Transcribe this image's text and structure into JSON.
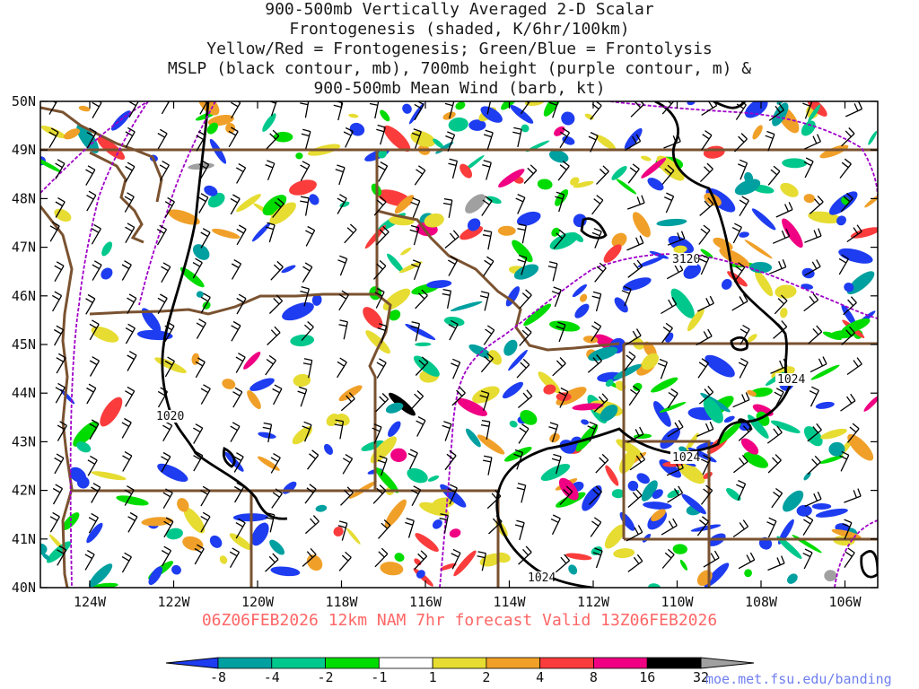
{
  "title_lines": [
    "900-500mb Vertically Averaged 2-D Scalar",
    "Frontogenesis (shaded, K/6hr/100km)",
    "Yellow/Red = Frontogenesis;  Green/Blue = Frontolysis",
    "MSLP (black contour, mb), 700mb height (purple contour, m) &",
    "900-500mb Mean Wind (barb, kt)"
  ],
  "valid_text": "06Z06FEB2026 12km NAM 7hr forecast Valid 13Z06FEB2026",
  "credit": "moe.met.fsu.edu/banding",
  "lat_labels": [
    "50N",
    "49N",
    "48N",
    "47N",
    "46N",
    "45N",
    "44N",
    "43N",
    "42N",
    "41N",
    "40N"
  ],
  "lon_labels": [
    "124W",
    "122W",
    "120W",
    "118W",
    "116W",
    "114W",
    "112W",
    "110W",
    "108W",
    "106W"
  ],
  "contour_labels": {
    "mslp_1020": "1020",
    "mslp_1024_east": "1024",
    "mslp_1024_mid": "1024",
    "mslp_1024_south": "1024",
    "height_3120": "3120"
  },
  "colorbar": {
    "labels": [
      "-8",
      "-4",
      "-2",
      "-1",
      "1",
      "2",
      "4",
      "8",
      "16",
      "32"
    ],
    "colors": [
      "#1e3cf0",
      "#00a0a0",
      "#00c88c",
      "#00dc00",
      "#ffffff",
      "#e6dc32",
      "#f0a028",
      "#fa3c3c",
      "#f00082",
      "#000000",
      "#a0a0a0"
    ]
  },
  "colors": {
    "mslp_contour": "#000000",
    "height_contour": "#a000c8",
    "borders": "#7a5230",
    "wind_barbs": "#000000"
  }
}
